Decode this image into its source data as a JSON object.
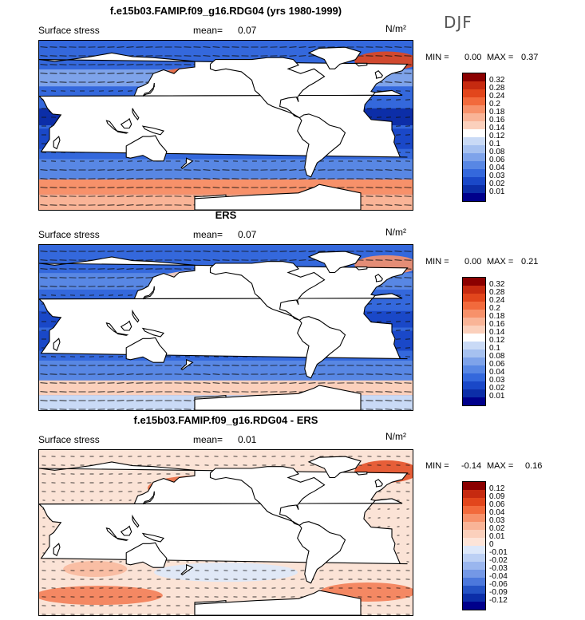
{
  "season": "DJF",
  "panels": [
    {
      "title": "f.e15b03.FAMIP.f09_g16.RDG04 (yrs 1980-1999)",
      "variable": "Surface stress",
      "mean_label": "mean=",
      "mean_value": "0.07",
      "units": "N/m²",
      "min_label": "MIN =",
      "min_value": "0.00",
      "max_label": "MAX =",
      "max_value": "0.37",
      "colorbar": {
        "levels": [
          "0.32",
          "0.28",
          "0.24",
          "0.2",
          "0.18",
          "0.16",
          "0.14",
          "0.12",
          "0.1",
          "0.08",
          "0.06",
          "0.04",
          "0.03",
          "0.02",
          "0.01"
        ],
        "colors": [
          "#8b0000",
          "#c62a10",
          "#e2461c",
          "#f26a3c",
          "#f7916a",
          "#f9b497",
          "#fbd0bc",
          "#ffffff",
          "#c9daf6",
          "#a6c1f0",
          "#7ea3ea",
          "#5887e4",
          "#3468dc",
          "#1a48c8",
          "#0c2ea8",
          "#00008b"
        ]
      },
      "field": "mean"
    },
    {
      "title": "ERS",
      "variable": "Surface stress",
      "mean_label": "mean=",
      "mean_value": "0.07",
      "units": "N/m²",
      "min_label": "MIN =",
      "min_value": "0.00",
      "max_label": "MAX =",
      "max_value": "0.21",
      "colorbar": {
        "levels": [
          "0.32",
          "0.28",
          "0.24",
          "0.2",
          "0.18",
          "0.16",
          "0.14",
          "0.12",
          "0.1",
          "0.08",
          "0.06",
          "0.04",
          "0.03",
          "0.02",
          "0.01"
        ],
        "colors": [
          "#8b0000",
          "#c62a10",
          "#e2461c",
          "#f26a3c",
          "#f7916a",
          "#f9b497",
          "#fbd0bc",
          "#ffffff",
          "#c9daf6",
          "#a6c1f0",
          "#7ea3ea",
          "#5887e4",
          "#3468dc",
          "#1a48c8",
          "#0c2ea8",
          "#00008b"
        ]
      },
      "field": "obs"
    },
    {
      "title": "f.e15b03.FAMIP.f09_g16.RDG04 - ERS",
      "variable": "Surface stress",
      "mean_label": "mean=",
      "mean_value": "0.01",
      "units": "N/m²",
      "min_label": "MIN =",
      "min_value": "-0.14",
      "max_label": "MAX =",
      "max_value": "0.16",
      "colorbar": {
        "levels": [
          "0.12",
          "0.09",
          "0.06",
          "0.04",
          "0.03",
          "0.02",
          "0.01",
          "0",
          "-0.01",
          "-0.02",
          "-0.03",
          "-0.04",
          "-0.06",
          "-0.09",
          "-0.12"
        ],
        "colors": [
          "#8b0000",
          "#c62a10",
          "#e2461c",
          "#f26a3c",
          "#f7916a",
          "#f9b497",
          "#fbd0bc",
          "#fde4d8",
          "#dde8fa",
          "#bcd0f4",
          "#9ab6ee",
          "#7498e6",
          "#4c78dc",
          "#2452c4",
          "#0c2ea8",
          "#00008b"
        ]
      },
      "field": "diff"
    }
  ]
}
